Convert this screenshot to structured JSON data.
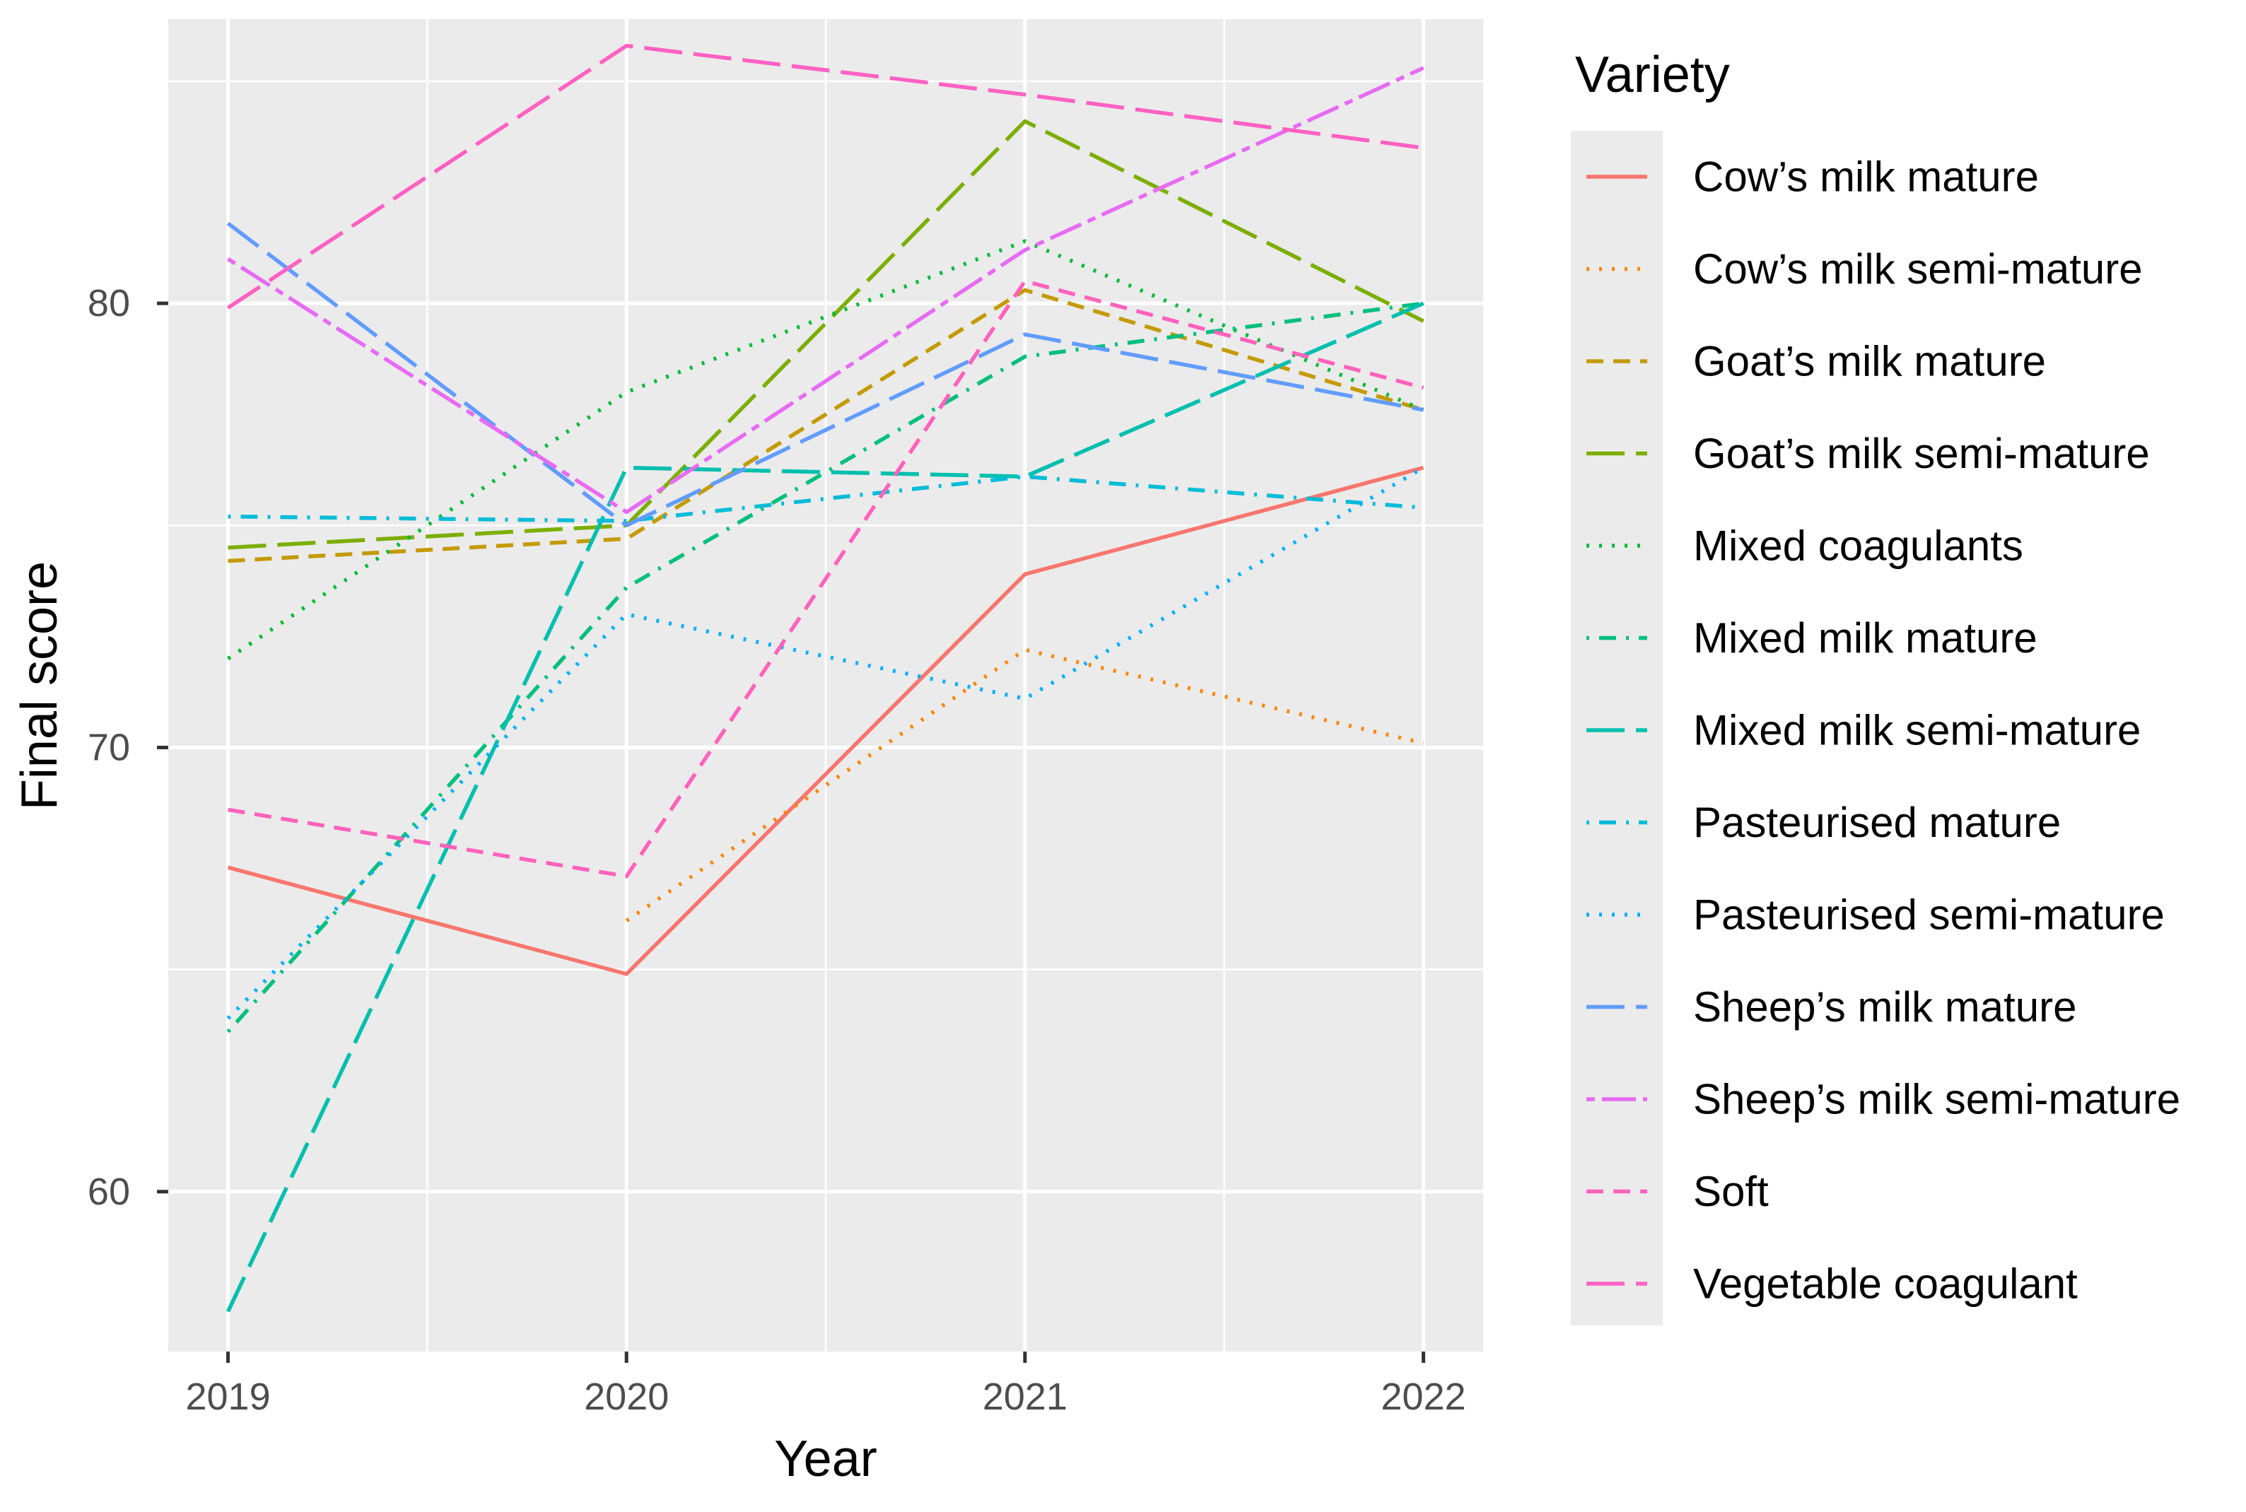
{
  "chart_data": {
    "type": "line",
    "title": "",
    "xlabel": "Year",
    "ylabel": "Final score",
    "x": [
      2019,
      2020,
      2021,
      2022
    ],
    "x_tick_labels": [
      "2019",
      "2020",
      "2021",
      "2022"
    ],
    "y_ticks": [
      60,
      70,
      80
    ],
    "y_tick_labels": [
      "60",
      "70",
      "80"
    ],
    "xlim": [
      2018.85,
      2022.15
    ],
    "ylim": [
      56.4,
      86.4
    ],
    "grid": true,
    "legend_title": "Variety",
    "legend_position": "right",
    "series": [
      {
        "name": "Cow’s milk mature",
        "color": "#F8766D",
        "dash": "solid",
        "values": [
          67.3,
          64.9,
          73.9,
          76.3
        ]
      },
      {
        "name": "Cow’s milk semi-mature",
        "color": "#F8870A",
        "dash": "dotted",
        "values": [
          null,
          66.1,
          72.2,
          70.1
        ]
      },
      {
        "name": "Goat’s milk mature",
        "color": "#C49A00",
        "dash": "dashed",
        "values": [
          74.2,
          74.7,
          80.3,
          77.6
        ]
      },
      {
        "name": "Goat’s milk semi-mature",
        "color": "#7CAE00",
        "dash": "longdash",
        "values": [
          74.5,
          75.0,
          84.1,
          79.6
        ]
      },
      {
        "name": "Mixed coagulants",
        "color": "#00BA38",
        "dash": "dotted",
        "values": [
          72.0,
          78.0,
          81.4,
          77.6
        ]
      },
      {
        "name": "Mixed milk mature",
        "color": "#00BF7D",
        "dash": "dotdash",
        "values": [
          63.6,
          73.6,
          78.8,
          80.0
        ]
      },
      {
        "name": "Mixed milk semi-mature",
        "color": "#00BFAE",
        "dash": "longdash",
        "values": [
          57.3,
          76.3,
          76.1,
          80.0
        ]
      },
      {
        "name": "Pasteurised mature",
        "color": "#00BCD8",
        "dash": "dotdash",
        "values": [
          75.2,
          75.1,
          76.1,
          75.4
        ]
      },
      {
        "name": "Pasteurised semi-mature",
        "color": "#00B0F6",
        "dash": "dotted",
        "values": [
          63.9,
          73.0,
          71.1,
          76.3
        ]
      },
      {
        "name": "Sheep’s milk mature",
        "color": "#619CFF",
        "dash": "longdash",
        "values": [
          81.8,
          75.0,
          79.3,
          77.6
        ]
      },
      {
        "name": "Sheep’s milk semi-mature",
        "color": "#E76BF3",
        "dash": "twodash",
        "values": [
          81.0,
          75.3,
          81.2,
          85.3
        ]
      },
      {
        "name": "Soft",
        "color": "#FF62BC",
        "dash": "dashed",
        "values": [
          68.6,
          67.1,
          80.5,
          78.1
        ]
      },
      {
        "name": "Vegetable coagulant",
        "color": "#FF61C3",
        "dash": "longdash",
        "values": [
          79.9,
          85.8,
          84.7,
          83.5
        ]
      }
    ]
  }
}
